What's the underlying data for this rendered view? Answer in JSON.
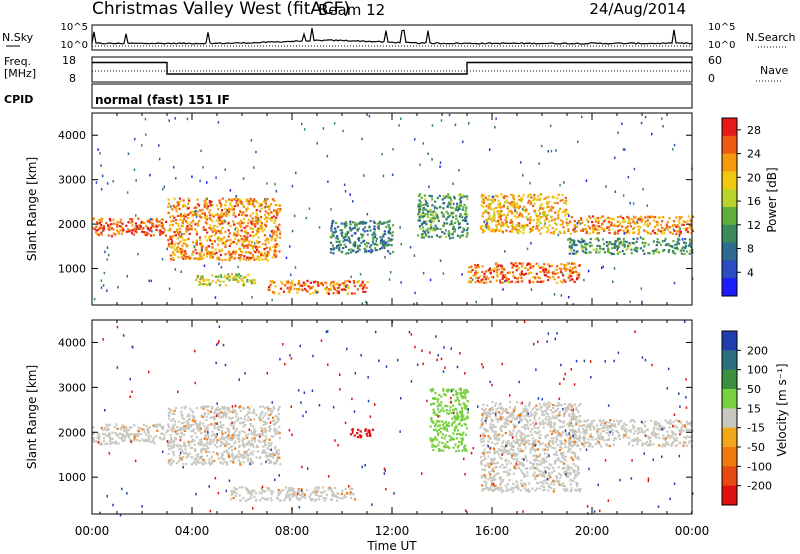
{
  "header": {
    "title": "Christmas Valley West (fitACF)",
    "beam": "Beam 12",
    "date": "24/Aug/2014"
  },
  "params": {
    "nsky_label": "N.Sky",
    "nsky_ticks": [
      "10^5",
      "10^0"
    ],
    "nsearch_label": "N.Search",
    "nsearch_ticks": [
      "10^5",
      "10^0"
    ],
    "freq_label": [
      "Freq.",
      "[MHz]"
    ],
    "freq_ticks": [
      "18",
      "8"
    ],
    "nave_label": "Nave",
    "nave_ticks": [
      "60",
      "0"
    ],
    "cpid_label": "CPID",
    "cpid_value": "normal (fast) 151 IF"
  },
  "chart_data": [
    {
      "type": "heatmap",
      "title": "",
      "xlabel": "Time UT",
      "ylabel": "Slant Range [km]",
      "x_ticks": [
        "00:00",
        "04:00",
        "08:00",
        "12:00",
        "16:00",
        "20:00",
        "00:00"
      ],
      "y_ticks": [
        "1000",
        "2000",
        "3000",
        "4000"
      ],
      "xlim": [
        0,
        24
      ],
      "ylim": [
        180,
        4500
      ],
      "colorbar": {
        "label": "Power [dB]",
        "ticks": [
          "4",
          "8",
          "12",
          "16",
          "20",
          "24",
          "28"
        ],
        "range": [
          0,
          30
        ],
        "colors": [
          "#1c1cff",
          "#2a4dbf",
          "#2e6b8e",
          "#3a8a5a",
          "#5fae3a",
          "#b8d42a",
          "#f2c80f",
          "#f59a0d",
          "#ef5a10",
          "#e61a1a"
        ]
      },
      "bands": [
        {
          "start_h": 0.0,
          "end_h": 3.0,
          "range_km": [
            1750,
            2150
          ],
          "level": 27
        },
        {
          "start_h": 3.0,
          "end_h": 7.5,
          "range_km": [
            1200,
            2600
          ],
          "level": 24
        },
        {
          "start_h": 4.0,
          "end_h": 6.5,
          "range_km": [
            650,
            900
          ],
          "level": 18
        },
        {
          "start_h": 7.0,
          "end_h": 11.0,
          "range_km": [
            450,
            750
          ],
          "level": 25
        },
        {
          "start_h": 9.5,
          "end_h": 12.0,
          "range_km": [
            1350,
            2100
          ],
          "level": 10
        },
        {
          "start_h": 13.0,
          "end_h": 15.0,
          "range_km": [
            1700,
            2700
          ],
          "level": 12
        },
        {
          "start_h": 15.0,
          "end_h": 19.5,
          "range_km": [
            700,
            1150
          ],
          "level": 26
        },
        {
          "start_h": 15.5,
          "end_h": 19.0,
          "range_km": [
            1800,
            2700
          ],
          "level": 22
        },
        {
          "start_h": 19.0,
          "end_h": 24.0,
          "range_km": [
            1800,
            2200
          ],
          "level": 24
        },
        {
          "start_h": 19.0,
          "end_h": 24.0,
          "range_km": [
            1350,
            1700
          ],
          "level": 12
        }
      ]
    },
    {
      "type": "heatmap",
      "title": "",
      "xlabel": "Time UT",
      "ylabel": "Slant Range [km]",
      "x_ticks": [
        "00:00",
        "04:00",
        "08:00",
        "12:00",
        "16:00",
        "20:00",
        "00:00"
      ],
      "y_ticks": [
        "1000",
        "2000",
        "3000",
        "4000"
      ],
      "xlim": [
        0,
        24
      ],
      "ylim": [
        180,
        4500
      ],
      "colorbar": {
        "label": "Velocity [m s⁻¹]",
        "ticks": [
          "200",
          "100",
          "50",
          "15",
          "-15",
          "-50",
          "-100",
          "-200"
        ],
        "colors": [
          "#1f3fb0",
          "#2b6f7e",
          "#3c8f3c",
          "#78d040",
          "#c8c8c0",
          "#f0a81a",
          "#f07a10",
          "#e64a10",
          "#e01010"
        ]
      },
      "bands": [
        {
          "start_h": 0.0,
          "end_h": 3.0,
          "range_km": [
            1750,
            2200
          ],
          "level": "ground-scatter"
        },
        {
          "start_h": 3.0,
          "end_h": 7.5,
          "range_km": [
            1300,
            2600
          ],
          "level": "ground-scatter"
        },
        {
          "start_h": 5.5,
          "end_h": 10.5,
          "range_km": [
            500,
            800
          ],
          "level": "ground-scatter"
        },
        {
          "start_h": 10.3,
          "end_h": 11.2,
          "range_km": [
            1900,
            2100
          ],
          "level": -200
        },
        {
          "start_h": 13.5,
          "end_h": 15.0,
          "range_km": [
            1600,
            3000
          ],
          "level": 30
        },
        {
          "start_h": 15.5,
          "end_h": 19.5,
          "range_km": [
            700,
            2700
          ],
          "level": "ground-scatter"
        },
        {
          "start_h": 19.0,
          "end_h": 24.0,
          "range_km": [
            1700,
            2300
          ],
          "level": "ground-scatter"
        }
      ]
    }
  ]
}
